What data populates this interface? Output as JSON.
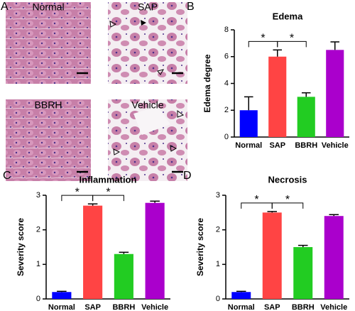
{
  "panel_labels": [
    "A",
    "B",
    "C",
    "D"
  ],
  "image_labels": [
    "Normal",
    "SAP",
    "BBRH",
    "Vehicle"
  ],
  "chart_data": [
    {
      "type": "bar",
      "title": "Edema",
      "y_label": "Edema degree",
      "categories": [
        "Normal",
        "SAP",
        "BBRH",
        "Vehicle"
      ],
      "values": [
        2,
        6,
        3,
        6.5
      ],
      "errors": [
        1,
        0.5,
        0.3,
        0.6
      ],
      "colors": [
        "#0000ff",
        "#ff4444",
        "#22cc22",
        "#aa00cc"
      ],
      "ylim": [
        0,
        8
      ],
      "yticks": [
        0,
        2,
        4,
        6,
        8
      ],
      "significance": [
        {
          "pair": [
            0,
            1
          ],
          "label": "*"
        },
        {
          "pair": [
            1,
            2
          ],
          "label": "*"
        }
      ]
    },
    {
      "type": "bar",
      "title": "Inflammation",
      "y_label": "Severity score",
      "categories": [
        "Normal",
        "SAP",
        "BBRH",
        "Vehicle"
      ],
      "values": [
        0.2,
        2.7,
        1.3,
        2.78
      ],
      "errors": [
        0.02,
        0.05,
        0.05,
        0.05
      ],
      "colors": [
        "#0000ff",
        "#ff4444",
        "#22cc22",
        "#aa00cc"
      ],
      "ylim": [
        0,
        3
      ],
      "yticks": [
        0,
        1,
        2,
        3
      ],
      "significance": [
        {
          "pair": [
            0,
            1
          ],
          "label": "*"
        },
        {
          "pair": [
            1,
            2
          ],
          "label": "*"
        }
      ]
    },
    {
      "type": "bar",
      "title": "Necrosis",
      "y_label": "Severity score",
      "categories": [
        "Normal",
        "SAP",
        "BBRH",
        "Vehicle"
      ],
      "values": [
        0.2,
        2.5,
        1.5,
        2.4
      ],
      "errors": [
        0.02,
        0.03,
        0.05,
        0.04
      ],
      "colors": [
        "#0000ff",
        "#ff4444",
        "#22cc22",
        "#aa00cc"
      ],
      "ylim": [
        0,
        3
      ],
      "yticks": [
        0,
        1,
        2,
        3
      ],
      "significance": [
        {
          "pair": [
            0,
            1
          ],
          "label": "*"
        },
        {
          "pair": [
            1,
            2
          ],
          "label": "*"
        }
      ]
    }
  ]
}
